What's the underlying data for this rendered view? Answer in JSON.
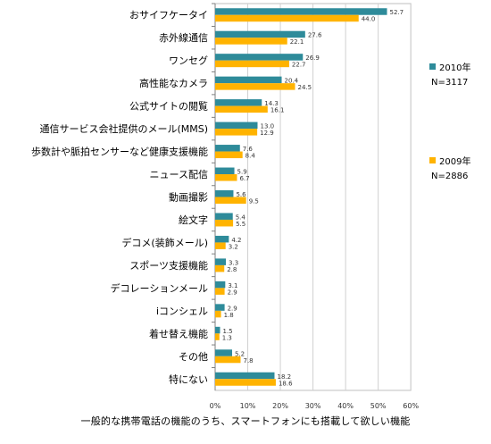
{
  "chart_data": {
    "type": "bar",
    "orientation": "horizontal",
    "categories": [
      "おサイフケータイ",
      "赤外線通信",
      "ワンセグ",
      "高性能なカメラ",
      "公式サイトの閲覧",
      "通信サービス会社提供のメール(MMS)",
      "歩数計や脈拍センサーなど健康支援機能",
      "ニュース配信",
      "動画撮影",
      "絵文字",
      "デコメ(装飾メール)",
      "スポーツ支援機能",
      "デコレーションメール",
      "iコンシェル",
      "着せ替え機能",
      "その他",
      "特にない"
    ],
    "series": [
      {
        "name": "2010年\nN=3117",
        "color": "#2e8b9a",
        "values": [
          52.7,
          27.6,
          26.9,
          20.4,
          14.3,
          13.0,
          7.6,
          5.9,
          5.6,
          5.4,
          4.2,
          3.3,
          3.1,
          2.9,
          1.5,
          5.2,
          18.2
        ]
      },
      {
        "name": "2009年\nN=2886",
        "color": "#ffb300",
        "values": [
          44.0,
          22.1,
          22.7,
          24.5,
          16.1,
          12.9,
          8.4,
          6.7,
          9.5,
          5.5,
          3.2,
          2.8,
          2.9,
          1.8,
          1.3,
          7.8,
          18.6
        ]
      }
    ],
    "x_ticks": [
      "0%",
      "10%",
      "20%",
      "30%",
      "40%",
      "50%",
      "60%"
    ],
    "xlim": [
      0,
      60
    ],
    "xlabel": "一般的な携帯電話の機能のうち、スマートフォンにも搭載して欲しい機能",
    "grid": true,
    "legend_position": "right"
  }
}
